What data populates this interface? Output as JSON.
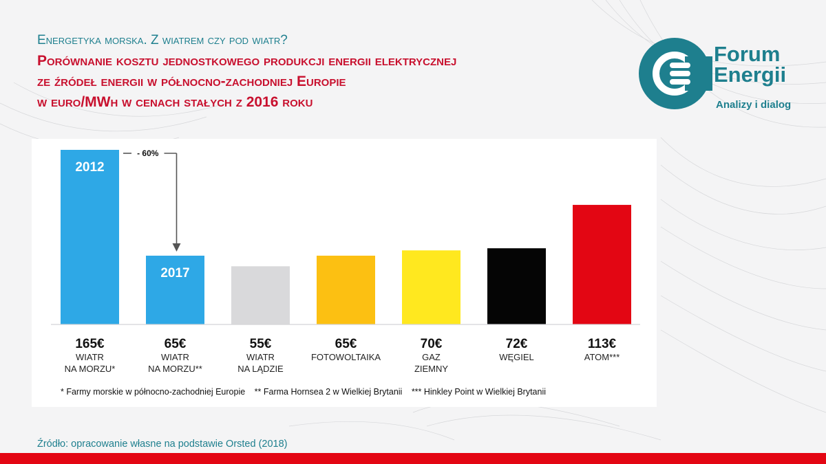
{
  "header": {
    "subtitle": "Energetyka morska. Z wiatrem czy pod wiatr?",
    "title_lines": [
      "Porównanie kosztu jednostkowego produkcji energii elektrycznej",
      "ze źródeł energii w północno-zachodniej Europie",
      "w euro/MWh w cenach stałych z 2016 roku"
    ]
  },
  "logo": {
    "line1": "Forum",
    "line2": "Energii",
    "tagline": "Analizy i dialog",
    "color": "#1e7f8e",
    "icon": "forum-energii-e-icon"
  },
  "chart_data": {
    "type": "bar",
    "categories": [
      [
        "WIATR",
        "NA MORZU*"
      ],
      [
        "WIATR",
        "NA MORZU**"
      ],
      [
        "WIATR",
        "NA LĄDZIE"
      ],
      [
        "FOTOWOLTAIKA"
      ],
      [
        "GAZ",
        "ZIEMNY"
      ],
      [
        "WĘGIEL"
      ],
      [
        "ATOM***"
      ]
    ],
    "values": [
      165,
      65,
      55,
      65,
      70,
      72,
      113
    ],
    "value_labels": [
      "165€",
      "65€",
      "55€",
      "65€",
      "70€",
      "72€",
      "113€"
    ],
    "bar_inner_labels": [
      "2012",
      "2017",
      "",
      "",
      "",
      "",
      ""
    ],
    "colors": [
      "#2ea8e6",
      "#2ea8e6",
      "#d9d9db",
      "#fcc012",
      "#ffe81f",
      "#050505",
      "#e30613"
    ],
    "annotation": {
      "text": "- 60%",
      "from_index": 0,
      "to_index": 1
    },
    "ylim": [
      0,
      165
    ],
    "axis_visible": false,
    "grid": false,
    "title": "",
    "xlabel": "",
    "ylabel": ""
  },
  "footnotes": [
    "* Farmy morskie w północno-zachodniej Europie",
    "** Farma Hornsea 2 w Wielkiej Brytanii",
    "*** Hinkley Point w Wielkiej Brytanii"
  ],
  "source": "Źródło: opracowanie własne na podstawie Orsted (2018)",
  "accent_red": "#e30613"
}
